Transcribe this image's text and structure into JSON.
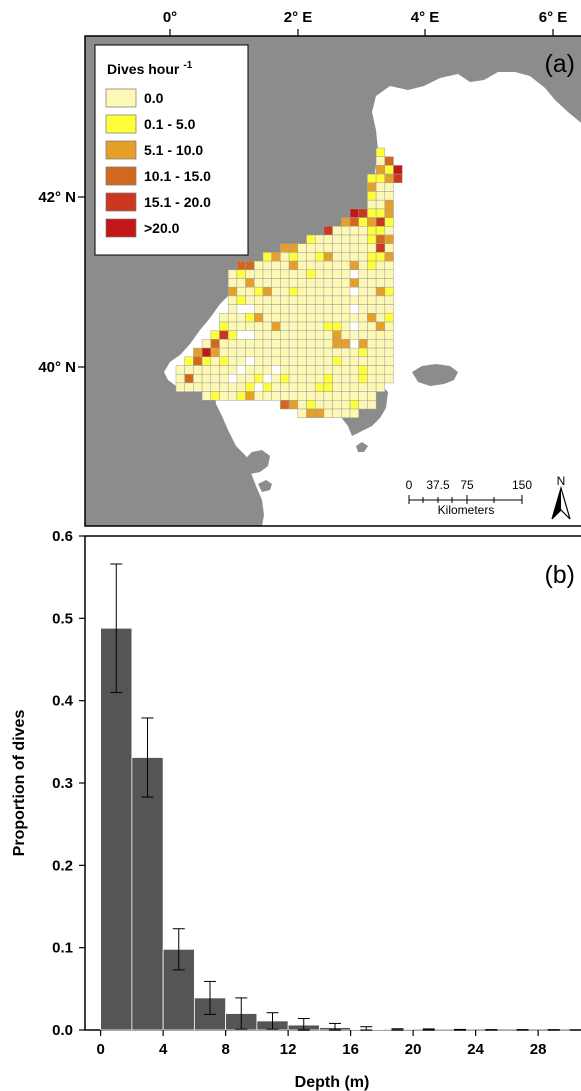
{
  "map_panel": {
    "panel_label": "(a)",
    "longitude_labels": [
      "0°",
      "2° E",
      "4° E",
      "6° E"
    ],
    "latitude_labels": [
      "42° N",
      "40° N"
    ],
    "legend": {
      "title": "Dives hour",
      "title_superscript": "-1",
      "classes": [
        {
          "label": "0.0",
          "color": "#fdf8b4"
        },
        {
          "label": "0.1 - 5.0",
          "color": "#fefe3a"
        },
        {
          "label": "5.1 - 10.0",
          "color": "#e5a02a"
        },
        {
          "label": "10.1 - 15.0",
          "color": "#d2671f"
        },
        {
          "label": "15.1 - 20.0",
          "color": "#c9381f"
        },
        {
          "label": ">20.0",
          "color": "#c31818"
        }
      ]
    },
    "scale_bar": {
      "ticks": [
        "0",
        "37.5",
        "75",
        "150"
      ],
      "unit": "Kilometers"
    },
    "north_arrow": "N",
    "colors": {
      "land": "#8c8c8c",
      "sea": "#ffffff",
      "grid_line": "#9a9a9a"
    }
  },
  "chart_data": {
    "type": "bar",
    "panel_label": "(b)",
    "xlabel": "Depth (m)",
    "ylabel": "Proportion of dives",
    "bin_width": 2,
    "x_bin_starts": [
      0,
      2,
      4,
      6,
      8,
      10,
      12,
      14,
      16,
      18,
      20,
      22,
      24,
      26,
      28
    ],
    "values": [
      0.488,
      0.331,
      0.098,
      0.039,
      0.02,
      0.011,
      0.006,
      0.003,
      0.001,
      0.0005,
      0.0003,
      0.0002,
      0.0001,
      0.0001,
      0.0001
    ],
    "error": [
      0.078,
      0.048,
      0.025,
      0.02,
      0.019,
      0.01,
      0.008,
      0.005,
      0.003,
      0.001,
      0.001,
      0.0005,
      0.0003,
      0.0003,
      0.0002
    ],
    "x_ticks": [
      0,
      4,
      8,
      12,
      16,
      20,
      24,
      28
    ],
    "y_ticks": [
      0.0,
      0.1,
      0.2,
      0.3,
      0.4,
      0.5,
      0.6
    ],
    "y_tick_labels": [
      "0.0",
      "0.1",
      "0.2",
      "0.3",
      "0.4",
      "0.5",
      "0.6"
    ],
    "xlim": [
      -1,
      31
    ],
    "ylim": [
      0,
      0.6
    ],
    "bar_color": "#555555",
    "grid": false
  }
}
